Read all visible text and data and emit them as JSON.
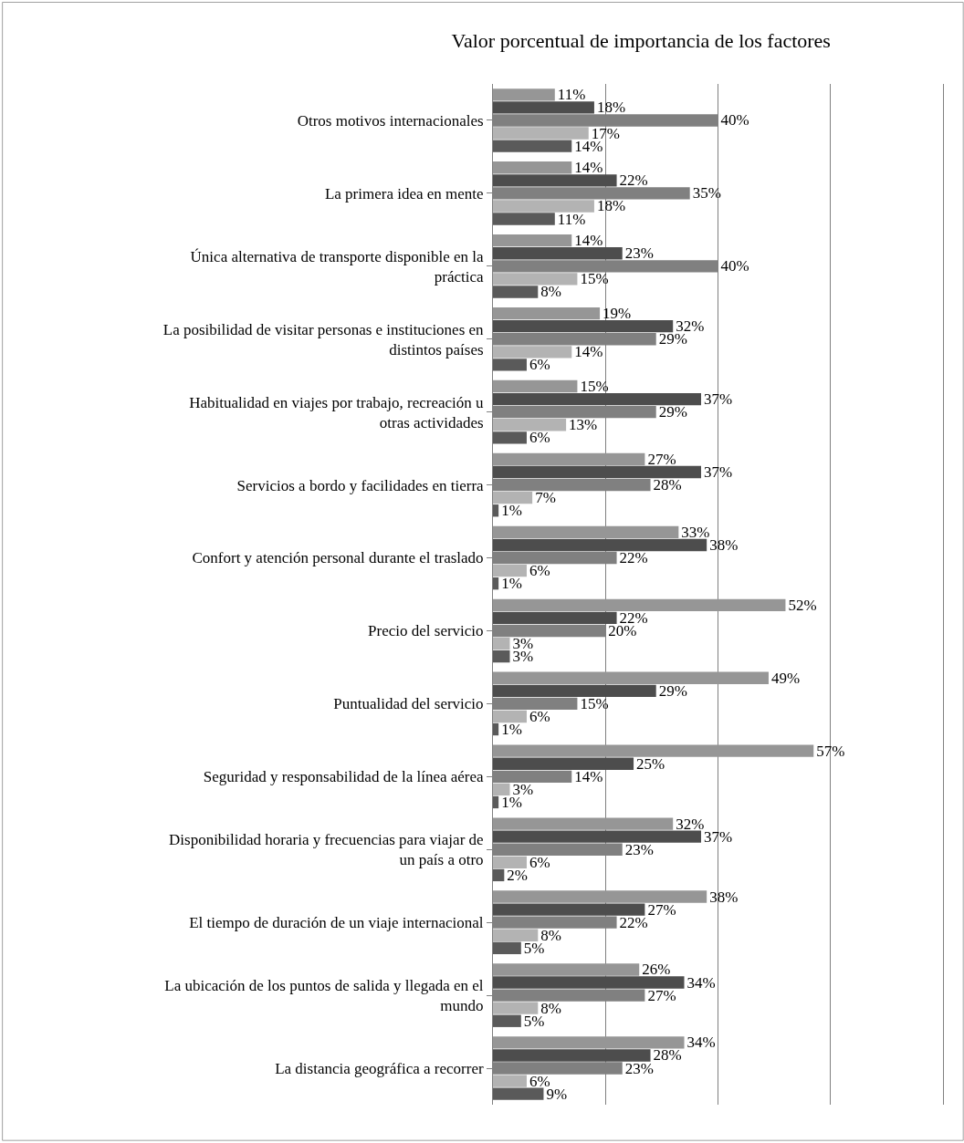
{
  "chart_data": {
    "type": "bar",
    "orientation": "horizontal",
    "title": "Valor porcentual de importancia de los factores",
    "categories": [
      "Otros motivos internacionales",
      "La primera idea en mente",
      "Única alternativa de transporte disponible en la práctica",
      "La posibilidad de visitar personas e instituciones en distintos países",
      "Habitualidad en viajes por trabajo, recreación u otras actividades",
      "Servicios a bordo y facilidades en tierra",
      "Confort y atención personal durante el traslado",
      "Precio del servicio",
      "Puntualidad del servicio",
      "Seguridad y responsabilidad de la línea aérea",
      "Disponibilidad horaria y frecuencias para viajar de un país a otro",
      "El tiempo de duración de un viaje internacional",
      "La ubicación de los puntos de salida y llegada en el mundo",
      "La distancia geográfica a recorrer"
    ],
    "series": [
      {
        "color": "#969696",
        "values": [
          11,
          14,
          14,
          19,
          15,
          27,
          33,
          52,
          49,
          57,
          32,
          38,
          26,
          34
        ],
        "value_labels": [
          "11%",
          "14%",
          "14%",
          "19%",
          "15%",
          "27%",
          "33%",
          "52%",
          "49%",
          "57%",
          "32%",
          "38%",
          "26%",
          "34%"
        ]
      },
      {
        "color": "#4d4d4d",
        "values": [
          18,
          22,
          23,
          32,
          37,
          37,
          38,
          22,
          29,
          25,
          37,
          27,
          34,
          28
        ],
        "value_labels": [
          "18%",
          "22%",
          "23%",
          "32%",
          "37%",
          "37%",
          "38%",
          "22%",
          "29%",
          "25%",
          "37%",
          "27%",
          "34%",
          "28%"
        ]
      },
      {
        "color": "#808080",
        "values": [
          40,
          35,
          40,
          29,
          29,
          28,
          22,
          20,
          15,
          14,
          23,
          22,
          27,
          23
        ],
        "value_labels": [
          "40%",
          "35%",
          "40%",
          "29%",
          "29%",
          "28%",
          "22%",
          "20%",
          "15%",
          "14%",
          "23%",
          "22%",
          "27%",
          "23%"
        ]
      },
      {
        "color": "#b3b3b3",
        "values": [
          17,
          18,
          15,
          14,
          13,
          7,
          6,
          3,
          6,
          3,
          6,
          8,
          8,
          6
        ],
        "value_labels": [
          "17%",
          "18%",
          "15%",
          "14%",
          "13%",
          "7%",
          "6%",
          "3%",
          "6%",
          "3%",
          "6%",
          "8%",
          "8%",
          "6%"
        ]
      },
      {
        "color": "#5a5a5a",
        "values": [
          14,
          11,
          8,
          6,
          6,
          1,
          1,
          3,
          1,
          1,
          2,
          5,
          5,
          9
        ],
        "value_labels": [
          "14%",
          "11%",
          "8%",
          "6%",
          "6%",
          "1%",
          "1%",
          "3%",
          "1%",
          "1%",
          "2%",
          "5%",
          "5%",
          "9%"
        ]
      }
    ],
    "xlim": [
      0,
      80
    ],
    "xticks": [
      {
        "value": 20,
        "label": null
      },
      {
        "value": 40,
        "label": null
      },
      {
        "value": 60,
        "label": null
      },
      {
        "value": 80,
        "label": null
      }
    ],
    "grid": "x",
    "tick_labels": "y"
  }
}
